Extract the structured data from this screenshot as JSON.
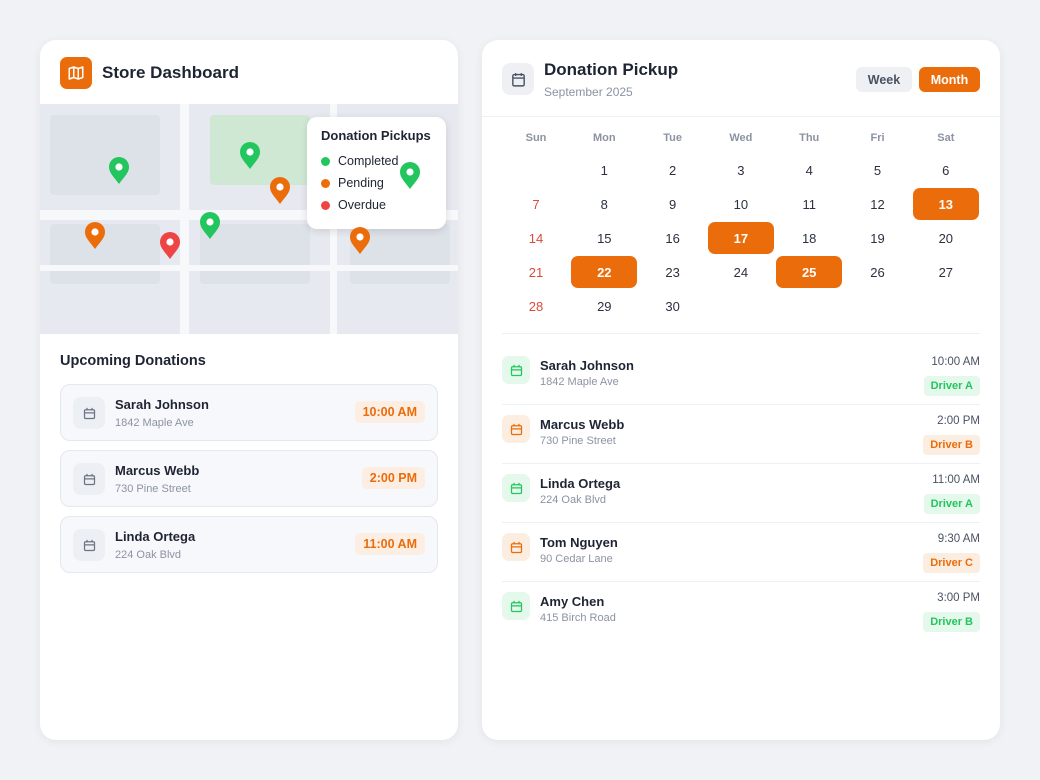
{
  "left": {
    "title": "Store Dashboard",
    "legend": {
      "title": "Donation Pickups",
      "items": [
        {
          "label": "Completed",
          "color": "#22c55e"
        },
        {
          "label": "Pending",
          "color": "#ea6c0a"
        },
        {
          "label": "Overdue",
          "color": "#ef4444"
        }
      ]
    },
    "upcoming": {
      "title": "Upcoming Donations",
      "items": [
        {
          "name": "Sarah Johnson",
          "address": "1842 Maple Ave",
          "time": "10:00 AM"
        },
        {
          "name": "Marcus Webb",
          "address": "730 Pine Street",
          "time": "2:00 PM"
        },
        {
          "name": "Linda Ortega",
          "address": "224 Oak Blvd",
          "time": "11:00 AM"
        }
      ]
    }
  },
  "right": {
    "title": "Donation Pickup",
    "subtitle": "September 2025",
    "views": [
      "Week",
      "Month"
    ],
    "active_view": "Month",
    "weekdays": [
      "Sun",
      "Mon",
      "Tue",
      "Wed",
      "Thu",
      "Fri",
      "Sat"
    ],
    "weeks": [
      [
        null,
        1,
        2,
        3,
        4,
        5,
        6
      ],
      [
        7,
        8,
        9,
        10,
        11,
        12,
        13
      ],
      [
        14,
        15,
        16,
        17,
        18,
        19,
        20
      ],
      [
        21,
        22,
        23,
        24,
        25,
        26,
        27
      ],
      [
        28,
        29,
        30,
        null,
        null,
        null,
        null
      ]
    ],
    "highlighted": [
      13,
      17,
      22,
      25
    ],
    "schedule": [
      {
        "name": "Sarah Johnson",
        "address": "1842 Maple Ave",
        "time": "10:00 AM",
        "driver": "Driver A",
        "color": "#22c55e"
      },
      {
        "name": "Marcus Webb",
        "address": "730 Pine Street",
        "time": "2:00 PM",
        "driver": "Driver B",
        "color": "#ea6c0a"
      },
      {
        "name": "Linda Ortega",
        "address": "224 Oak Blvd",
        "time": "11:00 AM",
        "driver": "Driver A",
        "color": "#22c55e"
      },
      {
        "name": "Tom Nguyen",
        "address": "90 Cedar Lane",
        "time": "9:30 AM",
        "driver": "Driver C",
        "color": "#ea6c0a"
      },
      {
        "name": "Amy Chen",
        "address": "415 Birch Road",
        "time": "3:00 PM",
        "driver": "Driver B",
        "color": "#22c55e"
      }
    ]
  }
}
